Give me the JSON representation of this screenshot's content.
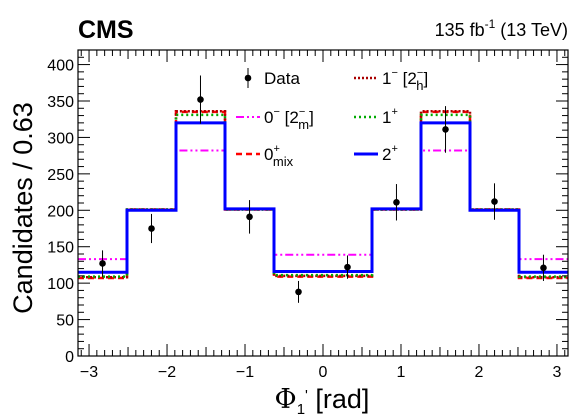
{
  "chart_data": {
    "type": "line",
    "experiment_label": "CMS",
    "lumi_label": {
      "value": "135 fb",
      "sup": "-1",
      "suffix": " (13 TeV)"
    },
    "xlabel": {
      "symbol": "Φ",
      "sub": "1",
      "prime": "'",
      "unit": " [rad]"
    },
    "ylabel": "Candidates / 0.63",
    "xlim": [
      -3.14159,
      3.14159
    ],
    "ylim": [
      0,
      420
    ],
    "xticks": [
      -3,
      -2,
      -1,
      0,
      1,
      2,
      3
    ],
    "xtick_labels": [
      "−3",
      "−2",
      "−1",
      "0",
      "1",
      "2",
      "3"
    ],
    "yticks": [
      0,
      50,
      100,
      150,
      200,
      250,
      300,
      350,
      400
    ],
    "ytick_labels": [
      "0",
      "50",
      "100",
      "150",
      "200",
      "250",
      "300",
      "350",
      "400"
    ],
    "bin_edges": [
      -3.14159,
      -2.51327,
      -1.88496,
      -1.25664,
      -0.62832,
      0.0,
      0.62832,
      1.25664,
      1.88496,
      2.51327,
      3.14159
    ],
    "data": {
      "x": [
        -2.827,
        -2.199,
        -1.571,
        -0.942,
        -0.314,
        0.314,
        0.942,
        1.571,
        2.199,
        2.827
      ],
      "y": [
        127,
        175,
        352,
        191,
        88,
        122,
        211,
        311,
        212,
        121
      ],
      "err": [
        18,
        20,
        33,
        23,
        15,
        16,
        25,
        32,
        25,
        18
      ]
    },
    "series": [
      {
        "legend_id": "0m",
        "color": "#ff00ff",
        "dash": "8 3 2 3 2 3",
        "width": 2,
        "values": [
          133,
          201,
          282,
          201,
          139,
          139,
          201,
          282,
          201,
          133
        ]
      },
      {
        "legend_id": "0mix",
        "color": "#ff0000",
        "dash": "6 4",
        "width": 2.5,
        "values": [
          107,
          201,
          335,
          201,
          109,
          109,
          201,
          335,
          201,
          107
        ]
      },
      {
        "legend_id": "1m2h",
        "color": "#aa0000",
        "dash": "2 2",
        "width": 2.5,
        "values": [
          108,
          201,
          336,
          201,
          110,
          110,
          201,
          336,
          201,
          108
        ]
      },
      {
        "legend_id": "1p",
        "color": "#00aa00",
        "dash": "2 3",
        "width": 2.5,
        "values": [
          109,
          201,
          331,
          201,
          111,
          111,
          201,
          331,
          201,
          109
        ]
      },
      {
        "legend_id": "2p",
        "color": "#0000ff",
        "dash": "",
        "width": 3,
        "values": [
          115,
          200,
          320,
          202,
          116,
          116,
          202,
          320,
          200,
          115
        ]
      }
    ],
    "legend": [
      {
        "id": "data",
        "text": "Data",
        "sup": "",
        "sub": ""
      },
      {
        "id": "0m",
        "text": "0",
        "sup": "−",
        "sub": "",
        "extra_text": " [2",
        "extra_sup": "−",
        "extra_sub": "m",
        "extra_close": "]"
      },
      {
        "id": "0mix",
        "text": "0",
        "sup": "+",
        "sub": "mix"
      },
      {
        "id": "1m2h",
        "text": "1",
        "sup": "−",
        "sub": "",
        "extra_text": " [2",
        "extra_sup": "−",
        "extra_sub": "h",
        "extra_close": "]"
      },
      {
        "id": "1p",
        "text": "1",
        "sup": "+",
        "sub": ""
      },
      {
        "id": "2p",
        "text": "2",
        "sup": "+",
        "sub": ""
      }
    ],
    "grid": false,
    "legend_position": "top-center"
  }
}
